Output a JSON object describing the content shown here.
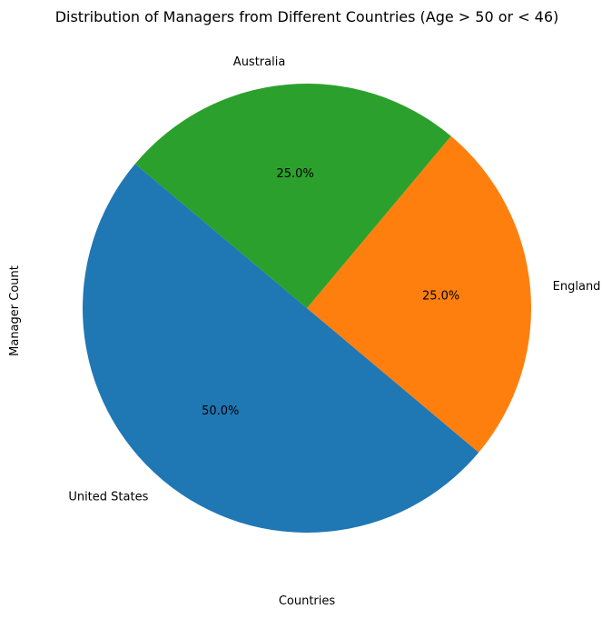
{
  "chart_data": {
    "type": "pie",
    "title": "Distribution of Managers from Different Countries (Age > 50 or < 46)",
    "xlabel": "Countries",
    "ylabel": "Manager Count",
    "categories": [
      "United States",
      "England",
      "Australia"
    ],
    "values": [
      50,
      25,
      25
    ],
    "percent_labels": [
      "50.0%",
      "25.0%",
      "25.0%"
    ],
    "colors": [
      "#1f77b4",
      "#ff7f0e",
      "#2ca02c"
    ],
    "start_angle_deg": 140,
    "direction": "counterclockwise",
    "legend": "none"
  }
}
